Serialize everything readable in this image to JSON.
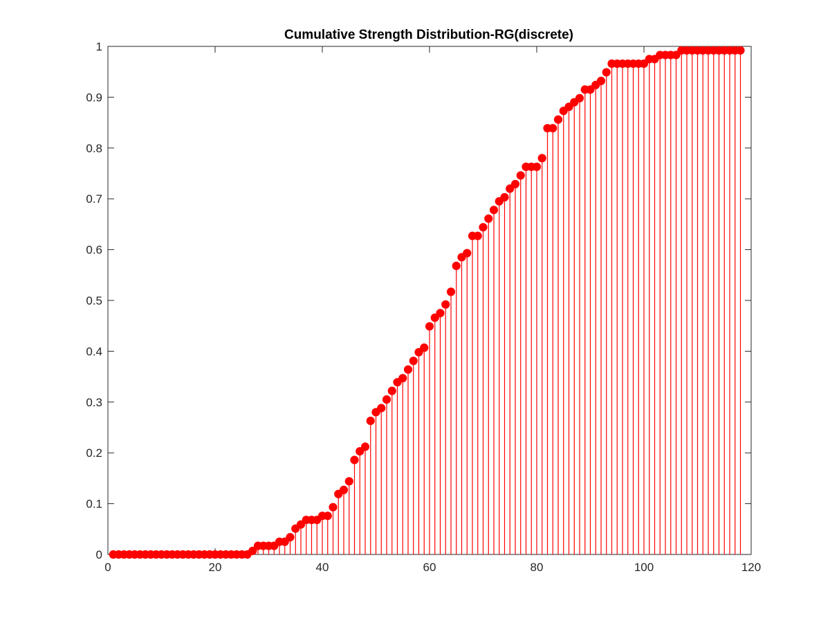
{
  "chart_data": {
    "type": "stem",
    "title": "Cumulative Strength Distribution-RG(discrete)",
    "xlabel": "",
    "ylabel": "",
    "xlim": [
      0,
      120
    ],
    "ylim": [
      0,
      1
    ],
    "xticks": [
      "0",
      "20",
      "40",
      "60",
      "80",
      "100",
      "120"
    ],
    "yticks": [
      "0",
      "0.1",
      "0.2",
      "0.3",
      "0.4",
      "0.5",
      "0.6",
      "0.7",
      "0.8",
      "0.9",
      "1"
    ],
    "grid": false,
    "legend": "none",
    "color": "#ff0000",
    "x": [
      1,
      2,
      3,
      4,
      5,
      6,
      7,
      8,
      9,
      10,
      11,
      12,
      13,
      14,
      15,
      16,
      17,
      18,
      19,
      20,
      21,
      22,
      23,
      24,
      25,
      26,
      27,
      28,
      29,
      30,
      31,
      32,
      33,
      34,
      35,
      36,
      37,
      38,
      39,
      40,
      41,
      42,
      43,
      44,
      45,
      46,
      47,
      48,
      49,
      50,
      51,
      52,
      53,
      54,
      55,
      56,
      57,
      58,
      59,
      60,
      61,
      62,
      63,
      64,
      65,
      66,
      67,
      68,
      69,
      70,
      71,
      72,
      73,
      74,
      75,
      76,
      77,
      78,
      79,
      80,
      81,
      82,
      83,
      84,
      85,
      86,
      87,
      88,
      89,
      90,
      91,
      92,
      93,
      94,
      95,
      96,
      97,
      98,
      99,
      100,
      101,
      102,
      103,
      104,
      105,
      106,
      107,
      108,
      109,
      110,
      111,
      112,
      113,
      114,
      115,
      116,
      117,
      118
    ],
    "values": [
      0,
      0,
      0,
      0,
      0,
      0,
      0,
      0,
      0,
      0,
      0,
      0,
      0,
      0,
      0,
      0,
      0,
      0,
      0,
      0,
      0,
      0,
      0,
      0,
      0,
      0,
      0.007,
      0.017,
      0.017,
      0.017,
      0.017,
      0.025,
      0.025,
      0.034,
      0.051,
      0.059,
      0.068,
      0.068,
      0.068,
      0.076,
      0.076,
      0.093,
      0.119,
      0.127,
      0.144,
      0.186,
      0.203,
      0.212,
      0.263,
      0.28,
      0.288,
      0.305,
      0.322,
      0.339,
      0.347,
      0.364,
      0.381,
      0.398,
      0.407,
      0.449,
      0.466,
      0.475,
      0.492,
      0.517,
      0.568,
      0.585,
      0.593,
      0.627,
      0.627,
      0.644,
      0.661,
      0.678,
      0.695,
      0.703,
      0.72,
      0.729,
      0.746,
      0.763,
      0.763,
      0.763,
      0.78,
      0.839,
      0.839,
      0.856,
      0.873,
      0.881,
      0.89,
      0.898,
      0.915,
      0.915,
      0.924,
      0.932,
      0.949,
      0.966,
      0.966,
      0.966,
      0.966,
      0.966,
      0.966,
      0.966,
      0.975,
      0.975,
      0.983,
      0.983,
      0.983,
      0.983,
      0.992,
      0.992,
      0.992,
      0.992,
      0.992,
      0.992,
      0.992,
      0.992,
      0.992,
      0.992,
      0.992,
      0.992
    ]
  }
}
